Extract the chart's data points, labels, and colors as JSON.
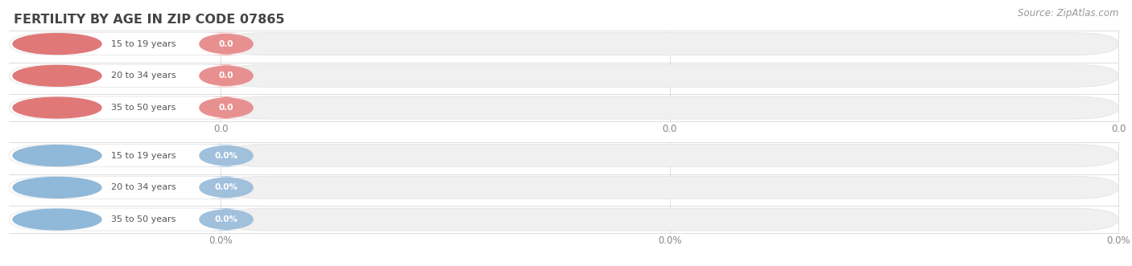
{
  "title": "FERTILITY BY AGE IN ZIP CODE 07865",
  "source_text": "Source: ZipAtlas.com",
  "top_categories": [
    "15 to 19 years",
    "20 to 34 years",
    "35 to 50 years"
  ],
  "bottom_categories": [
    "15 to 19 years",
    "20 to 34 years",
    "35 to 50 years"
  ],
  "top_labels": [
    "0.0",
    "0.0",
    "0.0"
  ],
  "bottom_labels": [
    "0.0%",
    "0.0%",
    "0.0%"
  ],
  "top_circle_color": "#e07878",
  "top_badge_color": "#e89090",
  "bottom_circle_color": "#90b8d8",
  "bottom_badge_color": "#a0c0dc",
  "bar_bg_color": "#f0f0f0",
  "bar_border_color": "#e0e0e0",
  "top_tick_labels": [
    "0.0",
    "0.0",
    "0.0"
  ],
  "bottom_tick_labels": [
    "0.0%",
    "0.0%",
    "0.0%"
  ],
  "background_color": "#ffffff",
  "title_color": "#444444",
  "source_color": "#999999",
  "grid_color": "#d8d8d8",
  "label_text_color": "#555555",
  "tick_text_color": "#888888"
}
